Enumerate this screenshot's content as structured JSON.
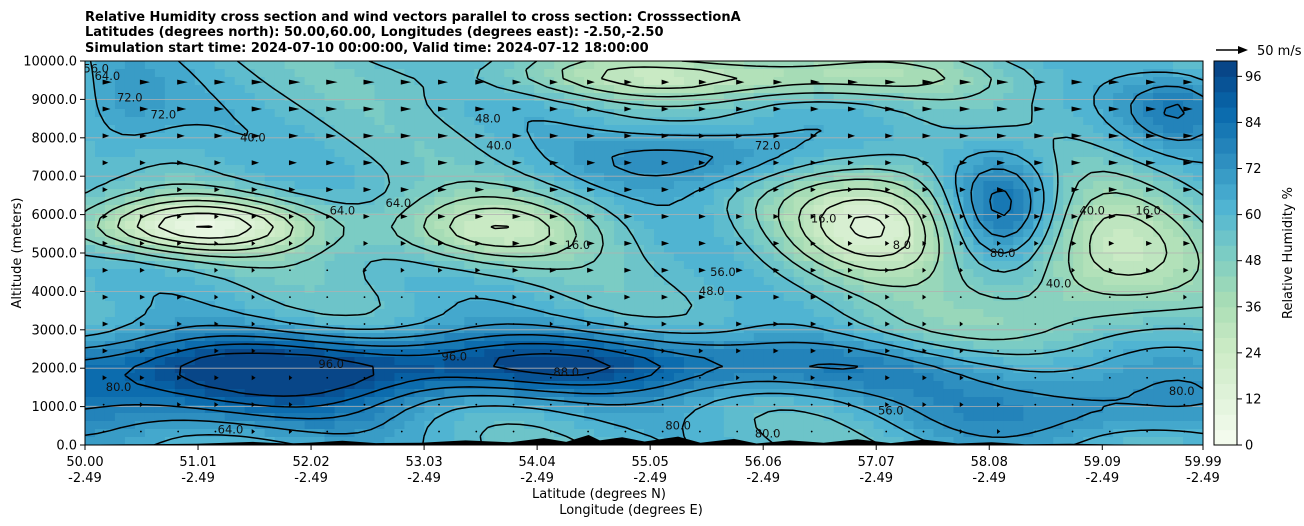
{
  "title_lines": [
    "Relative Humidity cross section and wind vectors parallel to cross section: CrosssectionA",
    "Latitudes (degrees north): 50.00,60.00, Longitudes (degrees east): -2.50,-2.50",
    "Simulation start time: 2024-07-10 00:00:00, Valid time: 2024-07-12 18:00:00"
  ],
  "chart_data": {
    "type": "heatmap",
    "variable": "Relative Humidity cross section with wind vectors",
    "ylabel": "Altitude (meters)",
    "xlabel_lat": "Latitude (degrees N)",
    "xlabel_lon": "Longitude (degrees E)",
    "ylim": [
      0,
      10000
    ],
    "y_ticks": [
      "0.0",
      "1000.0",
      "2000.0",
      "3000.0",
      "4000.0",
      "5000.0",
      "6000.0",
      "7000.0",
      "8000.0",
      "9000.0",
      "10000.0"
    ],
    "y_tick_values": [
      0,
      1000,
      2000,
      3000,
      4000,
      5000,
      6000,
      7000,
      8000,
      9000,
      10000
    ],
    "x_range": [
      50.0,
      59.99
    ],
    "x_ticks_lat": [
      "50.00",
      "51.01",
      "52.02",
      "53.03",
      "54.04",
      "55.05",
      "56.06",
      "57.07",
      "58.08",
      "59.09",
      "59.99"
    ],
    "x_tick_values": [
      50.0,
      51.01,
      52.02,
      53.03,
      54.04,
      55.05,
      56.06,
      57.07,
      58.08,
      59.09,
      59.99
    ],
    "x_ticks_lon": [
      "-2.49",
      "-2.49",
      "-2.49",
      "-2.49",
      "-2.49",
      "-2.49",
      "-2.49",
      "-2.49",
      "-2.49",
      "-2.49",
      "-2.49"
    ],
    "grid_y": true,
    "colorbar": {
      "label": "Relative Humidity %",
      "min": 0,
      "max": 100,
      "step": 4,
      "tick_labels": [
        "0",
        "12",
        "24",
        "36",
        "48",
        "60",
        "72",
        "84",
        "96"
      ],
      "tick_values": [
        0,
        12,
        24,
        36,
        48,
        60,
        72,
        84,
        96
      ],
      "colors": [
        "#f7fcf0",
        "#e0f3db",
        "#ccebc5",
        "#a8ddb5",
        "#7bccc4",
        "#4eb3d3",
        "#2b8cbe",
        "#0868ac",
        "#084081"
      ]
    },
    "contour_levels": [
      "8.0",
      "16.0",
      "24.0",
      "32.0",
      "40.0",
      "48.0",
      "56.0",
      "64.0",
      "72.0",
      "80.0",
      "88.0",
      "96.0"
    ],
    "contour_label_samples": [
      {
        "lat": 50.1,
        "alt": 9700,
        "text": "56.0"
      },
      {
        "lat": 50.2,
        "alt": 9500,
        "text": "64.0"
      },
      {
        "lat": 50.4,
        "alt": 8950,
        "text": "72.0"
      },
      {
        "lat": 50.7,
        "alt": 8500,
        "text": "72.0"
      },
      {
        "lat": 51.5,
        "alt": 7900,
        "text": "40.0"
      },
      {
        "lat": 52.3,
        "alt": 6000,
        "text": "64.0"
      },
      {
        "lat": 52.8,
        "alt": 6200,
        "text": "64.0"
      },
      {
        "lat": 53.6,
        "alt": 8400,
        "text": "48.0"
      },
      {
        "lat": 53.7,
        "alt": 7700,
        "text": "40.0"
      },
      {
        "lat": 54.4,
        "alt": 5100,
        "text": "16.0"
      },
      {
        "lat": 55.7,
        "alt": 4400,
        "text": "56.0"
      },
      {
        "lat": 55.6,
        "alt": 3900,
        "text": "48.0"
      },
      {
        "lat": 56.1,
        "alt": 7700,
        "text": "72.0"
      },
      {
        "lat": 56.6,
        "alt": 5800,
        "text": "16.0"
      },
      {
        "lat": 57.3,
        "alt": 5100,
        "text": "8.0"
      },
      {
        "lat": 58.2,
        "alt": 4900,
        "text": "80.0"
      },
      {
        "lat": 58.7,
        "alt": 4100,
        "text": "40.0"
      },
      {
        "lat": 59.0,
        "alt": 6000,
        "text": "40.0"
      },
      {
        "lat": 59.5,
        "alt": 6000,
        "text": "16.0"
      },
      {
        "lat": 59.8,
        "alt": 1300,
        "text": "80.0"
      },
      {
        "lat": 51.3,
        "alt": 300,
        "text": "64.0"
      },
      {
        "lat": 50.3,
        "alt": 1400,
        "text": "80.0"
      },
      {
        "lat": 52.2,
        "alt": 2000,
        "text": "96.0"
      },
      {
        "lat": 53.3,
        "alt": 2200,
        "text": "96.0"
      },
      {
        "lat": 54.3,
        "alt": 1800,
        "text": "88.0"
      },
      {
        "lat": 55.3,
        "alt": 400,
        "text": "80.0"
      },
      {
        "lat": 56.1,
        "alt": 200,
        "text": "80.0"
      },
      {
        "lat": 57.2,
        "alt": 800,
        "text": "56.0"
      }
    ],
    "wind_reference": "50 m/s"
  }
}
